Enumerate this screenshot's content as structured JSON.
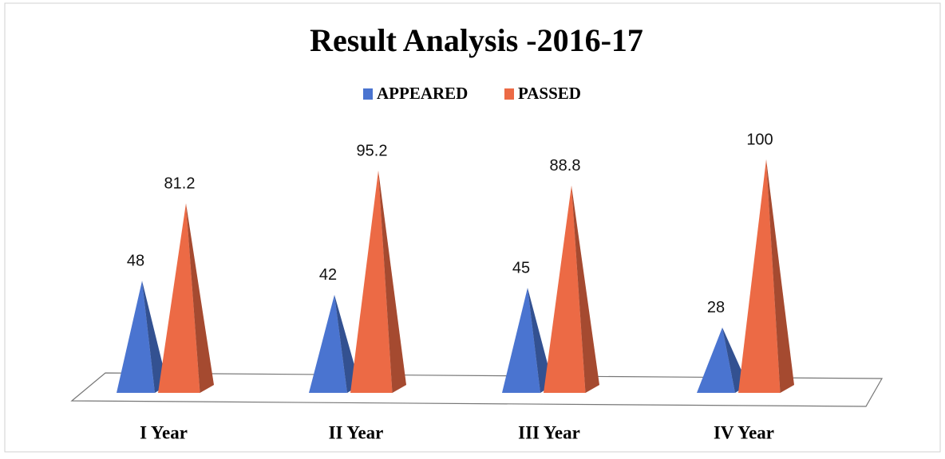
{
  "chart_data": {
    "type": "pyramid3d",
    "title": "Result Analysis -2016-17",
    "categories": [
      "I Year",
      "II Year",
      "III Year",
      "IV Year"
    ],
    "series": [
      {
        "name": "APPEARED",
        "color": "#4a74d0",
        "values": [
          48,
          42,
          45,
          28
        ]
      },
      {
        "name": "PASSED",
        "color": "#ec6a45",
        "values": [
          81.2,
          95.2,
          88.8,
          100
        ]
      }
    ],
    "legend": "top"
  }
}
